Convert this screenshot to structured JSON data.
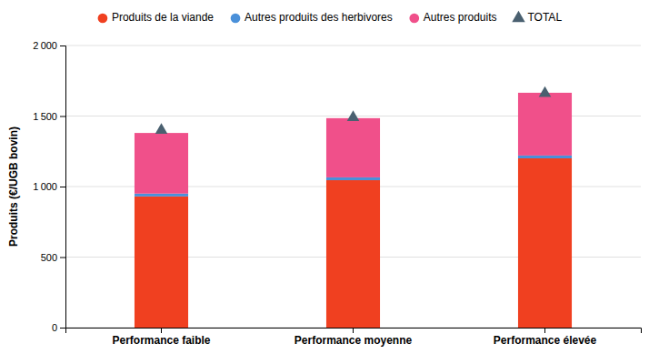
{
  "chart_data": {
    "type": "bar",
    "stacked": true,
    "categories": [
      "Performance faible",
      "Performance moyenne",
      "Performance élevée"
    ],
    "series": [
      {
        "name": "Produits de la viande",
        "color": "#f04020",
        "values": [
          930,
          1045,
          1200
        ]
      },
      {
        "name": "Autres produits des herbivores",
        "color": "#4a90d9",
        "values": [
          20,
          20,
          20
        ]
      },
      {
        "name": "Autres produits",
        "color": "#f0508a",
        "values": [
          430,
          420,
          445
        ]
      },
      {
        "name": "TOTAL",
        "type": "scatter",
        "marker": "triangle",
        "color": "#4a6070",
        "values": [
          1400,
          1490,
          1660
        ]
      }
    ],
    "ylabel": "Produits (€/UGB bovin)",
    "ylim": [
      0,
      2000
    ],
    "yticks": [
      0,
      500,
      {
        "value": 1000,
        "label": "1 000"
      },
      {
        "value": 1500,
        "label": "1 500"
      },
      {
        "value": 2000,
        "label": "2 000"
      }
    ],
    "grid": true,
    "legend": "top"
  }
}
